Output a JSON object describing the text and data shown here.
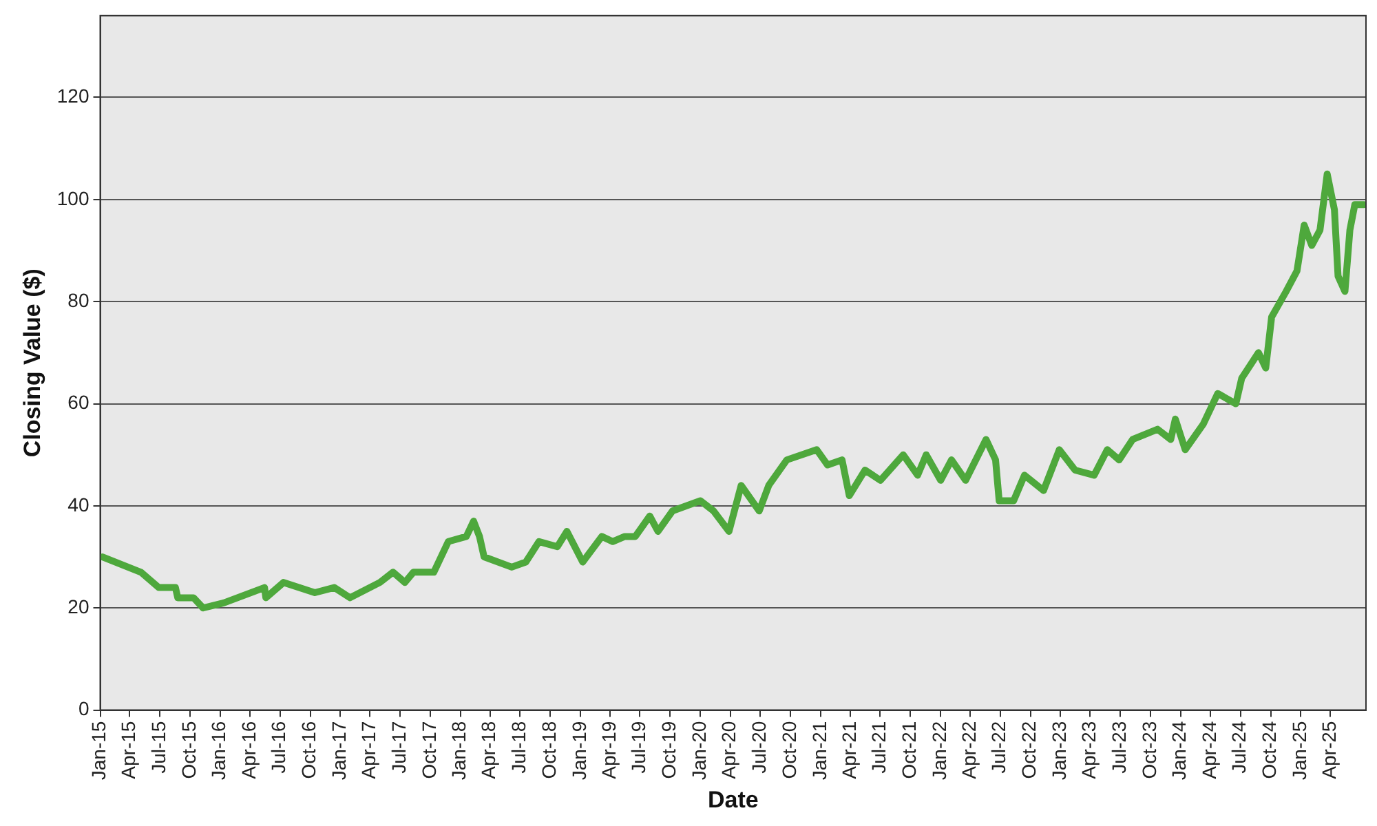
{
  "chart_data": {
    "type": "line",
    "xlabel": "Date",
    "ylabel": "Closing Value ($)",
    "x": [
      "2015-01-08",
      "2015-05-05",
      "2015-06-28",
      "2015-08-18",
      "2015-08-25",
      "2015-10-12",
      "2015-11-10",
      "2016-01-12",
      "2016-05-15",
      "2016-05-19",
      "2016-07-12",
      "2016-10-15",
      "2016-12-13",
      "2017-01-30",
      "2017-05-01",
      "2017-06-10",
      "2017-07-16",
      "2017-08-11",
      "2017-10-12",
      "2017-11-03",
      "2017-11-25",
      "2018-01-19",
      "2018-02-10",
      "2018-02-28",
      "2018-03-14",
      "2018-06-06",
      "2018-07-19",
      "2018-08-28",
      "2018-10-23",
      "2018-11-21",
      "2019-01-08",
      "2019-03-07",
      "2019-04-09",
      "2019-05-16",
      "2019-06-17",
      "2019-07-31",
      "2019-08-25",
      "2019-10-08",
      "2020-01-01",
      "2020-02-10",
      "2020-03-28",
      "2020-05-04",
      "2020-06-28",
      "2020-07-27",
      "2020-09-20",
      "2020-12-20",
      "2021-01-22",
      "2021-03-07",
      "2021-03-29",
      "2021-05-16",
      "2021-07-02",
      "2021-09-09",
      "2021-10-23",
      "2021-11-18",
      "2022-01-01",
      "2022-02-03",
      "2022-03-18",
      "2022-05-19",
      "2022-06-17",
      "2022-06-28",
      "2022-08-11",
      "2022-09-13",
      "2022-11-10",
      "2022-12-28",
      "2023-02-14",
      "2023-04-13",
      "2023-05-23",
      "2023-06-28",
      "2023-08-08",
      "2023-10-23",
      "2023-12-02",
      "2023-12-16",
      "2024-01-15",
      "2024-03-10",
      "2024-04-23",
      "2024-06-17",
      "2024-07-05",
      "2024-08-25",
      "2024-09-16",
      "2024-10-04",
      "2024-11-17",
      "2024-12-20",
      "2025-01-11",
      "2025-02-03",
      "2025-02-28",
      "2025-03-22",
      "2025-04-13",
      "2025-04-24",
      "2025-05-15",
      "2025-05-30",
      "2025-06-14",
      "2025-07-12"
    ],
    "series": [
      {
        "color": "#4ea83c",
        "values": [
          30,
          27,
          24,
          24,
          22,
          22,
          20,
          21,
          24,
          22,
          25,
          23,
          24,
          22,
          25,
          27,
          25,
          27,
          27,
          30,
          33,
          34,
          37,
          34,
          30,
          28,
          29,
          33,
          32,
          35,
          29,
          34,
          33,
          34,
          34,
          38,
          35,
          39,
          41,
          39,
          35,
          44,
          39,
          44,
          49,
          51,
          48,
          49,
          42,
          47,
          45,
          50,
          46,
          50,
          45,
          49,
          45,
          53,
          49,
          41,
          41,
          46,
          43,
          51,
          47,
          46,
          51,
          49,
          53,
          55,
          53,
          57,
          51,
          56,
          62,
          60,
          65,
          70,
          67,
          77,
          82,
          86,
          95,
          91,
          94,
          105,
          98,
          85,
          82,
          94,
          99,
          99
        ]
      }
    ],
    "xlim": [
      "2015-01-01",
      "2025-07-18"
    ],
    "xticks": [
      {
        "value": "2015-01-01",
        "label": "Jan-15"
      },
      {
        "value": "2015-04-01",
        "label": "Apr-15"
      },
      {
        "value": "2015-07-01",
        "label": "Jul-15"
      },
      {
        "value": "2015-10-01",
        "label": "Oct-15"
      },
      {
        "value": "2016-01-01",
        "label": "Jan-16"
      },
      {
        "value": "2016-04-01",
        "label": "Apr-16"
      },
      {
        "value": "2016-07-01",
        "label": "Jul-16"
      },
      {
        "value": "2016-10-01",
        "label": "Oct-16"
      },
      {
        "value": "2017-01-01",
        "label": "Jan-17"
      },
      {
        "value": "2017-04-01",
        "label": "Apr-17"
      },
      {
        "value": "2017-07-01",
        "label": "Jul-17"
      },
      {
        "value": "2017-10-01",
        "label": "Oct-17"
      },
      {
        "value": "2018-01-01",
        "label": "Jan-18"
      },
      {
        "value": "2018-04-01",
        "label": "Apr-18"
      },
      {
        "value": "2018-07-01",
        "label": "Jul-18"
      },
      {
        "value": "2018-10-01",
        "label": "Oct-18"
      },
      {
        "value": "2019-01-01",
        "label": "Jan-19"
      },
      {
        "value": "2019-04-01",
        "label": "Apr-19"
      },
      {
        "value": "2019-07-01",
        "label": "Jul-19"
      },
      {
        "value": "2019-10-01",
        "label": "Oct-19"
      },
      {
        "value": "2020-01-01",
        "label": "Jan-20"
      },
      {
        "value": "2020-04-01",
        "label": "Apr-20"
      },
      {
        "value": "2020-07-01",
        "label": "Jul-20"
      },
      {
        "value": "2020-10-01",
        "label": "Oct-20"
      },
      {
        "value": "2021-01-01",
        "label": "Jan-21"
      },
      {
        "value": "2021-04-01",
        "label": "Apr-21"
      },
      {
        "value": "2021-07-01",
        "label": "Jul-21"
      },
      {
        "value": "2021-10-01",
        "label": "Oct-21"
      },
      {
        "value": "2022-01-01",
        "label": "Jan-22"
      },
      {
        "value": "2022-04-01",
        "label": "Apr-22"
      },
      {
        "value": "2022-07-01",
        "label": "Jul-22"
      },
      {
        "value": "2022-10-01",
        "label": "Oct-22"
      },
      {
        "value": "2023-01-01",
        "label": "Jan-23"
      },
      {
        "value": "2023-04-01",
        "label": "Apr-23"
      },
      {
        "value": "2023-07-01",
        "label": "Jul-23"
      },
      {
        "value": "2023-10-01",
        "label": "Oct-23"
      },
      {
        "value": "2024-01-01",
        "label": "Jan-24"
      },
      {
        "value": "2024-04-01",
        "label": "Apr-24"
      },
      {
        "value": "2024-07-01",
        "label": "Jul-24"
      },
      {
        "value": "2024-10-01",
        "label": "Oct-24"
      },
      {
        "value": "2025-01-01",
        "label": "Jan-25"
      },
      {
        "value": "2025-04-01",
        "label": "Apr-25"
      }
    ],
    "ylim": [
      0,
      136
    ],
    "yticks": [
      0,
      20,
      40,
      60,
      80,
      100,
      120
    ],
    "grid": "y",
    "legend": false,
    "marker": "none",
    "line_style": "solid"
  }
}
